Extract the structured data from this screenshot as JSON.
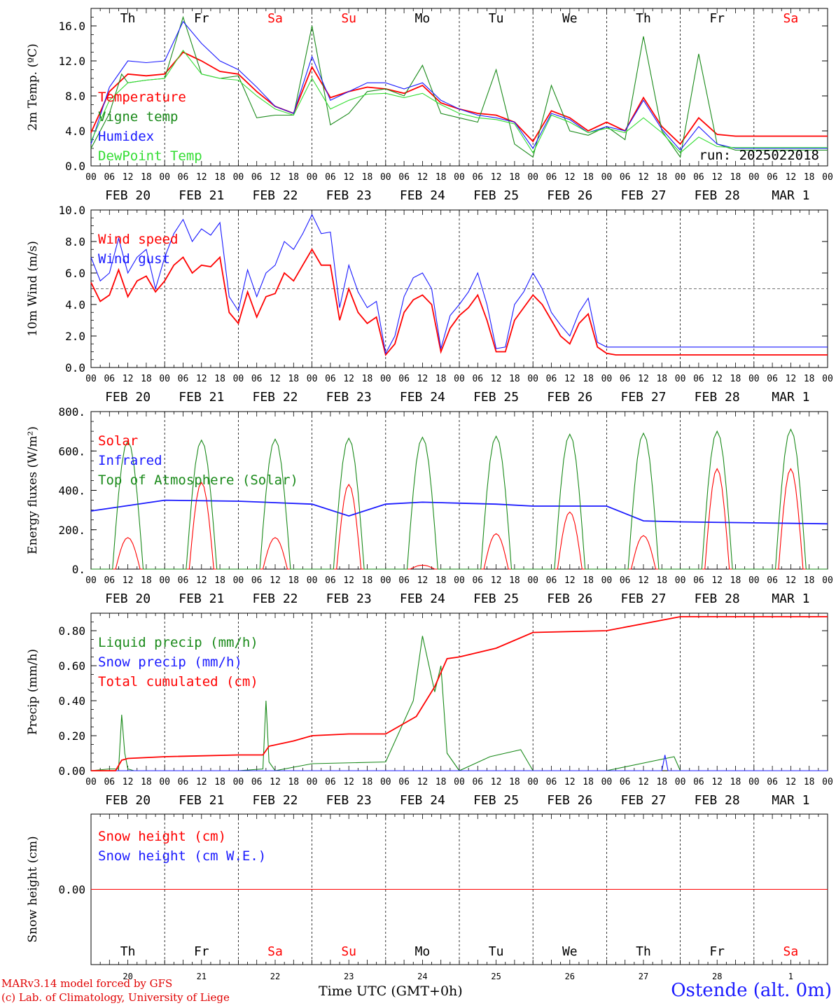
{
  "footer": {
    "credit_line1": "MARv3.14 model forced by GFS",
    "credit_line2": "(c) Lab. of Climatology, University of Liege",
    "x_title": "Time UTC (GMT+0h)",
    "station": "Ostende (alt. 0m)"
  },
  "colors": {
    "red": "#ff0000",
    "green": "#1a8a1a",
    "blue": "#1a1aff",
    "lightgreen": "#33dd33",
    "black": "#000000"
  },
  "time_axis": {
    "hour_ticks": [
      "00",
      "06",
      "12",
      "18"
    ],
    "date_labels": [
      "FEB 20",
      "FEB 21",
      "FEB 22",
      "FEB 23",
      "FEB 24",
      "FEB 25",
      "FEB 26",
      "FEB 27",
      "FEB 28",
      "MAR  1"
    ],
    "day_names": [
      "Th",
      "Fr",
      "Sa",
      "Su",
      "Mo",
      "Tu",
      "We",
      "Th",
      "Fr",
      "Sa"
    ],
    "weekend_days": [
      2,
      3,
      9
    ],
    "day_numbers": [
      "20",
      "21",
      "22",
      "23",
      "24",
      "25",
      "26",
      "27",
      "28",
      "1"
    ],
    "num_days": 10
  },
  "chart_data": [
    {
      "type": "line",
      "ylabel": "2m Temp. (ºC)",
      "ylim": [
        0,
        18
      ],
      "yticks": [
        0,
        4,
        8,
        12,
        16
      ],
      "ytick_labels": [
        "0.0",
        "4.0",
        "8.0",
        "12.0",
        "16.0"
      ],
      "annotation": "run: 2025022018",
      "show_day_names": true,
      "legend": [
        "Temperature",
        "Vigne temp",
        "Humidex",
        "DewPoint Temp"
      ],
      "series": [
        {
          "name": "Temperature",
          "color": "red",
          "x": [
            0,
            6,
            12,
            18,
            24,
            30,
            36,
            42,
            48,
            54,
            60,
            66,
            72,
            78,
            84,
            90,
            96,
            102,
            108,
            114,
            120,
            126,
            132,
            138,
            144,
            150,
            156,
            162,
            168,
            174,
            180,
            186,
            192,
            198,
            204,
            210,
            216,
            222,
            228,
            234,
            240
          ],
          "y": [
            3.8,
            8.5,
            10.5,
            10.3,
            10.5,
            13.0,
            12.0,
            10.8,
            10.5,
            8.5,
            6.8,
            6.0,
            11.3,
            7.8,
            8.5,
            9.0,
            8.8,
            8.3,
            9.2,
            7.2,
            6.5,
            6.0,
            5.8,
            5.0,
            2.8,
            6.3,
            5.5,
            4.0,
            5.0,
            4.0,
            7.8,
            4.5,
            2.5,
            5.5,
            3.6,
            3.4,
            3.4,
            3.4,
            3.4,
            3.4,
            3.4
          ]
        },
        {
          "name": "Vigne temp",
          "color": "green",
          "x": [
            0,
            6,
            10,
            12,
            18,
            24,
            30,
            36,
            42,
            48,
            54,
            60,
            66,
            72,
            78,
            84,
            90,
            96,
            102,
            108,
            114,
            120,
            126,
            132,
            138,
            144,
            150,
            156,
            162,
            168,
            174,
            180,
            186,
            192,
            198,
            204,
            210,
            216,
            222,
            228,
            234,
            240
          ],
          "y": [
            2.0,
            6.0,
            10.5,
            9.5,
            9.8,
            10.0,
            17.0,
            10.5,
            10.0,
            10.3,
            5.5,
            5.8,
            5.8,
            16.0,
            4.7,
            6.0,
            8.5,
            8.8,
            8.0,
            11.5,
            6.0,
            5.5,
            5.0,
            11.0,
            2.5,
            1.0,
            9.2,
            4.0,
            3.5,
            4.5,
            3.0,
            14.8,
            4.0,
            1.0,
            12.8,
            2.5,
            1.8,
            1.8,
            1.8,
            1.8,
            1.8,
            1.8
          ]
        },
        {
          "name": "Humidex",
          "color": "blue",
          "x": [
            0,
            6,
            12,
            18,
            24,
            30,
            36,
            42,
            48,
            54,
            60,
            66,
            72,
            78,
            84,
            90,
            96,
            102,
            108,
            114,
            120,
            126,
            132,
            138,
            144,
            150,
            156,
            162,
            168,
            174,
            180,
            186,
            192,
            198,
            204,
            210,
            216,
            222,
            228,
            234,
            240
          ],
          "y": [
            2.5,
            9.0,
            12.0,
            11.8,
            12.0,
            16.5,
            14.0,
            12.0,
            11.0,
            9.0,
            6.8,
            6.0,
            12.5,
            7.5,
            8.5,
            9.5,
            9.5,
            8.8,
            9.5,
            7.5,
            6.5,
            5.8,
            5.5,
            5.0,
            2.0,
            6.0,
            5.3,
            3.8,
            4.5,
            4.0,
            7.5,
            4.2,
            1.8,
            4.5,
            2.5,
            2.0,
            2.0,
            2.0,
            2.0,
            2.0,
            2.0
          ]
        },
        {
          "name": "DewPoint Temp",
          "color": "lightgreen",
          "x": [
            0,
            6,
            12,
            18,
            24,
            30,
            36,
            42,
            48,
            54,
            60,
            66,
            72,
            78,
            84,
            90,
            96,
            102,
            108,
            114,
            120,
            126,
            132,
            138,
            144,
            150,
            156,
            162,
            168,
            174,
            180,
            186,
            192,
            198,
            204,
            210,
            216,
            222,
            228,
            234,
            240
          ],
          "y": [
            2.8,
            7.5,
            9.5,
            9.8,
            10.0,
            13.2,
            10.5,
            10.0,
            9.8,
            8.0,
            6.5,
            5.8,
            10.0,
            6.5,
            7.5,
            8.2,
            8.3,
            7.8,
            8.3,
            7.0,
            6.0,
            5.5,
            5.3,
            4.8,
            1.5,
            5.8,
            5.0,
            3.8,
            4.3,
            3.8,
            5.5,
            3.8,
            1.5,
            3.3,
            2.2,
            2.1,
            2.1,
            2.1,
            2.1,
            2.1,
            2.1
          ]
        }
      ]
    },
    {
      "type": "line",
      "ylabel": "10m Wind (m/s)",
      "ylim": [
        0,
        10
      ],
      "yticks": [
        0,
        2,
        4,
        6,
        8,
        10
      ],
      "ytick_labels": [
        "0.0",
        "2.0",
        "4.0",
        "6.0",
        "8.0",
        "10.0"
      ],
      "reference_line": 5,
      "legend": [
        "Wind speed",
        "Wind gust"
      ],
      "series": [
        {
          "name": "Wind speed",
          "color": "red",
          "x": [
            0,
            3,
            6,
            9,
            12,
            15,
            18,
            21,
            24,
            27,
            30,
            33,
            36,
            39,
            42,
            45,
            48,
            51,
            54,
            57,
            60,
            63,
            66,
            69,
            72,
            75,
            78,
            81,
            84,
            87,
            90,
            93,
            96,
            99,
            102,
            105,
            108,
            111,
            114,
            117,
            120,
            123,
            126,
            129,
            132,
            135,
            138,
            141,
            144,
            147,
            150,
            153,
            156,
            159,
            162,
            165,
            168,
            171,
            174,
            177,
            180,
            183,
            186,
            189,
            192,
            195,
            198,
            201,
            204,
            207,
            210,
            213,
            216,
            222,
            228,
            234,
            240
          ],
          "y": [
            5.4,
            4.2,
            4.6,
            6.2,
            4.5,
            5.5,
            5.8,
            4.8,
            5.5,
            6.5,
            7.0,
            6.0,
            6.5,
            6.4,
            7.0,
            3.5,
            2.8,
            4.8,
            3.2,
            4.5,
            4.7,
            6.0,
            5.5,
            6.5,
            7.5,
            6.5,
            6.5,
            3.0,
            5.0,
            3.5,
            2.8,
            3.2,
            0.8,
            1.5,
            3.5,
            4.3,
            4.6,
            4.0,
            1.0,
            2.5,
            3.3,
            3.8,
            4.6,
            3.0,
            1.0,
            1.0,
            3.0,
            3.8,
            4.6,
            4.0,
            3.0,
            2.0,
            1.5,
            2.8,
            3.4,
            1.3,
            0.9,
            0.8,
            0.8,
            0.8,
            0.8,
            0.8,
            0.8,
            0.8,
            0.8,
            0.8,
            0.8,
            0.8,
            0.8,
            0.8,
            0.8,
            0.8,
            0.8,
            0.8,
            0.8,
            0.8,
            0.8
          ]
        },
        {
          "name": "Wind gust",
          "color": "blue",
          "x": [
            0,
            3,
            6,
            9,
            12,
            15,
            18,
            21,
            24,
            27,
            30,
            33,
            36,
            39,
            42,
            45,
            48,
            51,
            54,
            57,
            60,
            63,
            66,
            69,
            72,
            75,
            78,
            81,
            84,
            87,
            90,
            93,
            96,
            99,
            102,
            105,
            108,
            111,
            114,
            117,
            120,
            123,
            126,
            129,
            132,
            135,
            138,
            141,
            144,
            147,
            150,
            153,
            156,
            159,
            162,
            165,
            168,
            171,
            174,
            177,
            180,
            183,
            186,
            189,
            192,
            195,
            198,
            201,
            204,
            207,
            210,
            213,
            216,
            222,
            228,
            234,
            240
          ],
          "y": [
            7.0,
            5.5,
            6.0,
            8.2,
            6.0,
            7.0,
            7.5,
            5.0,
            7.0,
            8.5,
            9.4,
            8.0,
            8.8,
            8.4,
            9.2,
            4.5,
            3.6,
            6.2,
            4.5,
            6.0,
            6.5,
            8.0,
            7.5,
            8.5,
            9.7,
            8.5,
            8.6,
            3.8,
            6.5,
            4.8,
            3.8,
            4.2,
            0.9,
            2.0,
            4.5,
            5.7,
            6.0,
            5.0,
            1.2,
            3.3,
            4.0,
            4.8,
            6.0,
            4.0,
            1.2,
            1.3,
            4.0,
            4.8,
            6.0,
            5.0,
            3.5,
            2.7,
            2.0,
            3.5,
            4.4,
            1.6,
            1.3,
            1.3,
            1.3,
            1.3,
            1.3,
            1.3,
            1.3,
            1.3,
            1.3,
            1.3,
            1.3,
            1.3,
            1.3,
            1.3,
            1.3,
            1.3,
            1.3,
            1.3,
            1.3,
            1.3,
            1.3
          ]
        }
      ]
    },
    {
      "type": "line",
      "ylabel": "Energy fluxes (W/m²)",
      "ylim": [
        0,
        800
      ],
      "yticks": [
        0,
        200,
        400,
        600,
        800
      ],
      "ytick_labels": [
        "0.",
        "200.",
        "400.",
        "600.",
        "800."
      ],
      "legend": [
        "Solar",
        "Infrared",
        "Top of Atmosphere (Solar)"
      ],
      "series": [
        {
          "name": "Solar",
          "color": "red",
          "day_peaks": [
            160,
            440,
            160,
            430,
            20,
            180,
            290,
            170,
            510,
            510
          ]
        },
        {
          "name": "Infrared",
          "color": "blue",
          "x": [
            0,
            24,
            48,
            72,
            84,
            96,
            108,
            120,
            132,
            144,
            168,
            180,
            192,
            216,
            240
          ],
          "y": [
            295,
            350,
            345,
            330,
            270,
            330,
            340,
            335,
            330,
            320,
            320,
            245,
            240,
            235,
            230
          ]
        },
        {
          "name": "Top of Atmosphere (Solar)",
          "color": "green",
          "day_peaks": [
            650,
            655,
            660,
            665,
            670,
            675,
            685,
            690,
            700,
            710
          ]
        }
      ]
    },
    {
      "type": "line",
      "ylabel": "Precip (mm/h)",
      "ylim": [
        0,
        0.9
      ],
      "yticks": [
        0,
        0.2,
        0.4,
        0.6,
        0.8
      ],
      "ytick_labels": [
        "0.00",
        "0.20",
        "0.40",
        "0.60",
        "0.80"
      ],
      "legend": [
        "Liquid precip (mm/h)",
        "Snow precip (mm/h)",
        "Total cumulated (cm)"
      ],
      "series": [
        {
          "name": "Liquid precip (mm/h)",
          "color": "green",
          "x": [
            0,
            6,
            9,
            10,
            11,
            12,
            14,
            24,
            48,
            56,
            57,
            58,
            60,
            66,
            72,
            96,
            105,
            108,
            112,
            114,
            116,
            120,
            130,
            140,
            144,
            168,
            190,
            192,
            240
          ],
          "y": [
            0,
            0.01,
            0.01,
            0.32,
            0.1,
            0.01,
            0.0,
            0.0,
            0.0,
            0.01,
            0.4,
            0.05,
            0.0,
            0.02,
            0.04,
            0.05,
            0.4,
            0.77,
            0.45,
            0.6,
            0.1,
            0.0,
            0.08,
            0.12,
            0.0,
            0.0,
            0.08,
            0.0,
            0.0
          ]
        },
        {
          "name": "Snow precip (mm/h)",
          "color": "blue",
          "x": [
            0,
            186,
            187,
            188,
            240
          ],
          "y": [
            0,
            0,
            0.09,
            0,
            0
          ]
        },
        {
          "name": "Total cumulated (cm)",
          "color": "red",
          "x": [
            0,
            8,
            10,
            12,
            24,
            48,
            56,
            58,
            66,
            72,
            84,
            96,
            106,
            112,
            116,
            120,
            132,
            144,
            168,
            180,
            192,
            240
          ],
          "y": [
            0.0,
            0.0,
            0.06,
            0.07,
            0.08,
            0.09,
            0.09,
            0.14,
            0.17,
            0.2,
            0.21,
            0.21,
            0.31,
            0.48,
            0.64,
            0.65,
            0.7,
            0.79,
            0.8,
            0.84,
            0.88,
            0.88
          ]
        }
      ]
    },
    {
      "type": "line",
      "ylabel": "Snow height (cm)",
      "ylim": [
        -1,
        1
      ],
      "yticks": [
        0
      ],
      "ytick_labels": [
        "0.00"
      ],
      "show_bottom_days": true,
      "legend": [
        "Snow height (cm)",
        "Snow height (cm W.E.)"
      ],
      "series": [
        {
          "name": "Snow height (cm)",
          "color": "red",
          "x": [
            0,
            240
          ],
          "y": [
            0,
            0
          ]
        },
        {
          "name": "Snow height (cm W.E.)",
          "color": "blue",
          "x": [],
          "y": []
        }
      ]
    }
  ]
}
